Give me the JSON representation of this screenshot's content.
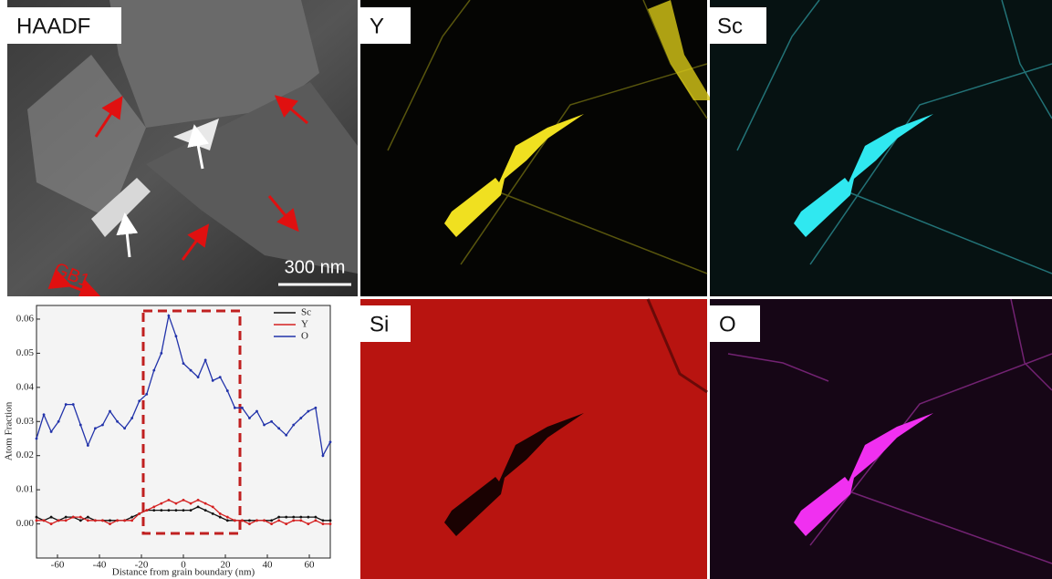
{
  "panels": [
    {
      "label": "HAADF"
    },
    {
      "label": "Y"
    },
    {
      "label": "Sc"
    },
    {
      "label": "Si"
    },
    {
      "label": "O"
    }
  ],
  "scale_bar": "300 nm",
  "annotation": "GB1",
  "chart_data": {
    "type": "line",
    "xlabel": "Distance from grain boundary (nm)",
    "ylabel": "Atom Fraction",
    "x": [
      -70,
      -66.5,
      -63,
      -59.5,
      -56,
      -52.5,
      -49,
      -45.5,
      -42,
      -38.5,
      -35,
      -31.5,
      -28,
      -24.5,
      -21,
      -17.5,
      -14,
      -10.5,
      -7,
      -3.5,
      0,
      3.5,
      7,
      10.5,
      14,
      17.5,
      21,
      24.5,
      28,
      31.5,
      35,
      38.5,
      42,
      45.5,
      49,
      52.5,
      56,
      59.5,
      63,
      66.5,
      70
    ],
    "series": [
      {
        "name": "Sc",
        "color": "#111111",
        "values": [
          0.002,
          0.001,
          0.002,
          0.001,
          0.002,
          0.002,
          0.001,
          0.002,
          0.001,
          0.001,
          0.001,
          0.001,
          0.001,
          0.002,
          0.003,
          0.004,
          0.004,
          0.004,
          0.004,
          0.004,
          0.004,
          0.004,
          0.005,
          0.004,
          0.003,
          0.002,
          0.001,
          0.001,
          0.001,
          0.001,
          0.001,
          0.001,
          0.001,
          0.002,
          0.002,
          0.002,
          0.002,
          0.002,
          0.002,
          0.001,
          0.001
        ]
      },
      {
        "name": "Y",
        "color": "#d42020",
        "values": [
          0.001,
          0.001,
          0,
          0.001,
          0.001,
          0.002,
          0.002,
          0.001,
          0.001,
          0.001,
          0,
          0.001,
          0.001,
          0.001,
          0.003,
          0.004,
          0.005,
          0.006,
          0.007,
          0.006,
          0.007,
          0.006,
          0.007,
          0.006,
          0.005,
          0.003,
          0.002,
          0.001,
          0.001,
          0,
          0.001,
          0.001,
          0,
          0.001,
          0,
          0.001,
          0.001,
          0,
          0.001,
          0,
          0
        ]
      },
      {
        "name": "O",
        "color": "#2233aa",
        "values": [
          0.025,
          0.032,
          0.027,
          0.03,
          0.035,
          0.035,
          0.029,
          0.023,
          0.028,
          0.029,
          0.033,
          0.03,
          0.028,
          0.031,
          0.036,
          0.038,
          0.045,
          0.05,
          0.061,
          0.055,
          0.047,
          0.045,
          0.043,
          0.048,
          0.042,
          0.043,
          0.039,
          0.034,
          0.034,
          0.031,
          0.033,
          0.029,
          0.03,
          0.028,
          0.026,
          0.029,
          0.031,
          0.033,
          0.034,
          0.02,
          0.024
        ]
      }
    ],
    "xlim": [
      -70,
      70
    ],
    "ylim": [
      -0.01,
      0.064
    ],
    "xticks": [
      -60,
      -40,
      -20,
      0,
      20,
      40,
      60
    ],
    "yticks": [
      {
        "value": 0,
        "label": "0.00"
      },
      0.01,
      0.02,
      0.03,
      0.04,
      0.05,
      0.06
    ],
    "legend": "upper right"
  }
}
